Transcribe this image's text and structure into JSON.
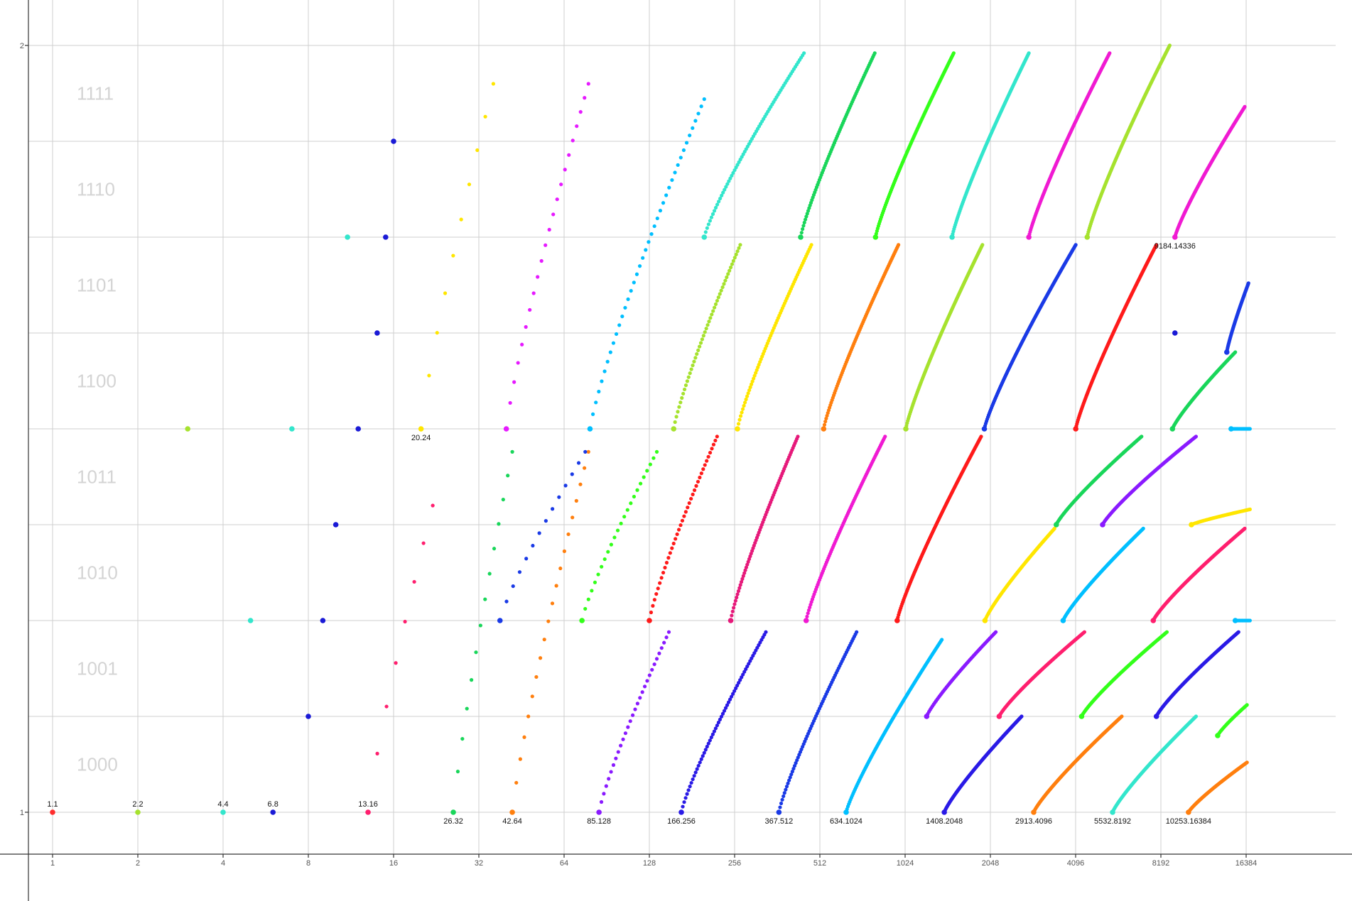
{
  "chart_data": {
    "type": "scatter",
    "title": "",
    "xlabel": "",
    "ylabel": "",
    "x_scale": "log2",
    "xlim": [
      0.85,
      24000
    ],
    "ylim": [
      0.9,
      2.0
    ],
    "grid": true,
    "x_ticks": [
      "1",
      "2",
      "4",
      "8",
      "16",
      "32",
      "64",
      "128",
      "256",
      "512",
      "1024",
      "2048",
      "4096",
      "8192",
      "16384"
    ],
    "y_ticks": [
      "1",
      "2"
    ],
    "band_labels": [
      "1000",
      "1001",
      "1010",
      "1011",
      "1100",
      "1101",
      "1110",
      "1111"
    ],
    "point_labels": [
      {
        "text": "1.1",
        "x": 1,
        "y": 1
      },
      {
        "text": "2.2",
        "x": 2,
        "y": 1
      },
      {
        "text": "4.4",
        "x": 4,
        "y": 1
      },
      {
        "text": "6.8",
        "x": 6,
        "y": 1
      },
      {
        "text": "13.16",
        "x": 13,
        "y": 1
      },
      {
        "text": "26.32",
        "x": 26,
        "y": 1
      },
      {
        "text": "42.64",
        "x": 42,
        "y": 1
      },
      {
        "text": "85.128",
        "x": 85,
        "y": 1
      },
      {
        "text": "166.256",
        "x": 166,
        "y": 1
      },
      {
        "text": "367.512",
        "x": 367,
        "y": 1
      },
      {
        "text": "634.1024",
        "x": 634,
        "y": 1
      },
      {
        "text": "1408.2048",
        "x": 1408,
        "y": 1
      },
      {
        "text": "2913.4096",
        "x": 2913,
        "y": 1
      },
      {
        "text": "5532.8192",
        "x": 5532,
        "y": 1
      },
      {
        "text": "10253.16384",
        "x": 10253,
        "y": 1
      },
      {
        "text": "20.24",
        "x": 20,
        "y": 1.5
      },
      {
        "text": "9184.14336",
        "x": 9184,
        "y": 1.75
      }
    ],
    "series": [
      {
        "color": "#ff2d2d",
        "segments": [
          [
            1,
            1,
            1,
            1,
            1
          ]
        ]
      },
      {
        "color": "#a6e22e",
        "segments": [
          [
            2,
            2,
            1,
            1,
            1
          ]
        ]
      },
      {
        "color": "#33e6cc",
        "segments": [
          [
            4,
            4,
            1,
            1,
            1
          ]
        ]
      },
      {
        "color": "#1a1ad6",
        "segments": [
          [
            6,
            6,
            1,
            1,
            1
          ],
          [
            8,
            8,
            1.125,
            1.125,
            1
          ],
          [
            9,
            9,
            1.25,
            1.25,
            1
          ],
          [
            10,
            10,
            1.375,
            1.375,
            1
          ],
          [
            12,
            12,
            1.5,
            1.5,
            1
          ],
          [
            14,
            14,
            1.625,
            1.625,
            1
          ],
          [
            15,
            15,
            1.75,
            1.75,
            1
          ],
          [
            16,
            16,
            1.875,
            1.875,
            1
          ]
        ]
      },
      {
        "color": "#ff1f6e",
        "segments": [
          [
            13,
            22,
            1,
            1.4,
            8
          ]
        ]
      },
      {
        "color": "#a6e22e",
        "segments": [
          [
            3,
            3,
            1.5,
            1.5,
            1
          ]
        ]
      },
      {
        "color": "#33e6cc",
        "segments": [
          [
            5,
            5,
            1.25,
            1.25,
            1
          ],
          [
            7,
            7,
            1.5,
            1.5,
            1
          ],
          [
            11,
            11,
            1.75,
            1.75,
            1
          ]
        ]
      },
      {
        "color": "#ffe600",
        "segments": [
          [
            20,
            36,
            1.5,
            1.95,
            10
          ]
        ]
      },
      {
        "color": "#19d65a",
        "segments": [
          [
            26,
            42,
            1,
            1.47,
            14
          ]
        ]
      },
      {
        "color": "#ff7f0e",
        "segments": [
          [
            42,
            78,
            1,
            1.47,
            20
          ]
        ]
      },
      {
        "color": "#e61aff",
        "segments": [
          [
            40,
            78,
            1.5,
            1.95,
            22
          ]
        ]
      },
      {
        "color": "#1a3ae6",
        "segments": [
          [
            38,
            76,
            1.25,
            1.47,
            14
          ]
        ]
      },
      {
        "color": "#33ff1a",
        "segments": [
          [
            74,
            136,
            1.25,
            1.47,
            24
          ]
        ]
      },
      {
        "color": "#8a1aff",
        "segments": [
          [
            85,
            150,
            1,
            1.235,
            30
          ]
        ]
      },
      {
        "color": "#00bfff",
        "segments": [
          [
            79,
            200,
            1.5,
            1.93,
            40
          ]
        ]
      },
      {
        "color": "#ff1a1a",
        "segments": [
          [
            128,
            222,
            1.25,
            1.49,
            40
          ]
        ]
      },
      {
        "color": "#2a1ae6",
        "segments": [
          [
            166,
            330,
            1,
            1.235,
            60
          ]
        ]
      },
      {
        "color": "#a6e22e",
        "segments": [
          [
            156,
            268,
            1.5,
            1.74,
            50
          ]
        ]
      },
      {
        "color": "#e6197a",
        "segments": [
          [
            248,
            428,
            1.25,
            1.49,
            70
          ]
        ]
      },
      {
        "color": "#33e6cc",
        "segments": [
          [
            200,
            450,
            1.75,
            1.99,
            70
          ]
        ]
      },
      {
        "color": "#ffe600",
        "segments": [
          [
            262,
            478,
            1.5,
            1.74,
            70
          ]
        ]
      },
      {
        "color": "#1a3ae6",
        "segments": [
          [
            367,
            690,
            1,
            1.235,
            70
          ]
        ]
      },
      {
        "color": "#f01ad2",
        "segments": [
          [
            458,
            870,
            1.25,
            1.49,
            90
          ]
        ]
      },
      {
        "color": "#19d65a",
        "segments": [
          [
            438,
            800,
            1.75,
            1.99,
            80
          ]
        ]
      },
      {
        "color": "#ff7f0e",
        "segments": [
          [
            528,
            970,
            1.5,
            1.74,
            90
          ]
        ]
      },
      {
        "color": "#00bfff",
        "segments": [
          [
            634,
            1380,
            1,
            1.225,
            110
          ]
        ]
      },
      {
        "color": "#ff1a1a",
        "segments": [
          [
            960,
            1900,
            1.25,
            1.49,
            120
          ]
        ]
      },
      {
        "color": "#33ff1a",
        "segments": [
          [
            805,
            1520,
            1.75,
            1.99,
            110
          ]
        ]
      },
      {
        "color": "#a6e22e",
        "segments": [
          [
            1030,
            1920,
            1.5,
            1.74,
            120
          ]
        ]
      },
      {
        "color": "#8a1aff",
        "segments": [
          [
            1220,
            2140,
            1.125,
            1.235,
            60
          ]
        ]
      },
      {
        "color": "#2a1ae6",
        "segments": [
          [
            1408,
            2640,
            1,
            1.125,
            120
          ]
        ]
      },
      {
        "color": "#33e6cc",
        "segments": [
          [
            1500,
            2800,
            1.75,
            1.99,
            120
          ]
        ]
      },
      {
        "color": "#ffe600",
        "segments": [
          [
            1960,
            3450,
            1.25,
            1.37,
            80
          ]
        ]
      },
      {
        "color": "#1a3ae6",
        "segments": [
          [
            1950,
            4100,
            1.5,
            1.74,
            130
          ]
        ]
      },
      {
        "color": "#ff1f6e",
        "segments": [
          [
            2200,
            4400,
            1.125,
            1.235,
            90
          ]
        ]
      },
      {
        "color": "#f01ad2",
        "segments": [
          [
            2800,
            5400,
            1.75,
            1.99,
            130
          ]
        ]
      },
      {
        "color": "#ff7f0e",
        "segments": [
          [
            2913,
            5960,
            1,
            1.125,
            120
          ]
        ]
      },
      {
        "color": "#00bfff",
        "segments": [
          [
            3700,
            7100,
            1.25,
            1.37,
            110
          ]
        ]
      },
      {
        "color": "#19d65a",
        "segments": [
          [
            3500,
            7000,
            1.375,
            1.49,
            90
          ]
        ]
      },
      {
        "color": "#ff1a1a",
        "segments": [
          [
            4100,
            7900,
            1.5,
            1.74,
            140
          ]
        ]
      },
      {
        "color": "#33ff1a",
        "segments": [
          [
            4300,
            8600,
            1.125,
            1.235,
            100
          ]
        ]
      },
      {
        "color": "#a6e22e",
        "segments": [
          [
            4500,
            8800,
            1.75,
            2.0,
            140
          ]
        ]
      },
      {
        "color": "#33e6cc",
        "segments": [
          [
            5532,
            10900,
            1,
            1.125,
            120
          ]
        ]
      },
      {
        "color": "#8a1aff",
        "segments": [
          [
            5100,
            10900,
            1.375,
            1.49,
            100
          ]
        ]
      },
      {
        "color": "#2a1ae6",
        "segments": [
          [
            7900,
            15400,
            1.125,
            1.235,
            110
          ]
        ]
      },
      {
        "color": "#19d65a",
        "segments": [
          [
            9000,
            15000,
            1.5,
            1.6,
            80
          ]
        ]
      },
      {
        "color": "#1a3ae6",
        "segments": [
          [
            14000,
            16700,
            1.6,
            1.69,
            60
          ]
        ]
      },
      {
        "color": "#ff1f6e",
        "segments": [
          [
            7700,
            16200,
            1.25,
            1.37,
            120
          ]
        ]
      },
      {
        "color": "#ff7f0e",
        "segments": [
          [
            10253,
            16500,
            1,
            1.065,
            80
          ]
        ]
      },
      {
        "color": "#f01ad2",
        "segments": [
          [
            9184,
            16200,
            1.75,
            1.92,
            120
          ]
        ]
      },
      {
        "color": "#ffe600",
        "segments": [
          [
            10500,
            16900,
            1.375,
            1.395,
            50
          ]
        ]
      },
      {
        "color": "#33ff1a",
        "segments": [
          [
            13000,
            16500,
            1.1,
            1.14,
            30
          ]
        ]
      },
      {
        "color": "#00bfff",
        "segments": [
          [
            14500,
            16900,
            1.5,
            1.5,
            25
          ],
          [
            15000,
            16900,
            1.25,
            1.25,
            12
          ]
        ]
      },
      {
        "color": "#1a1ad6",
        "segments": [
          [
            9184,
            9184,
            1.625,
            1.625,
            1
          ]
        ]
      }
    ]
  }
}
